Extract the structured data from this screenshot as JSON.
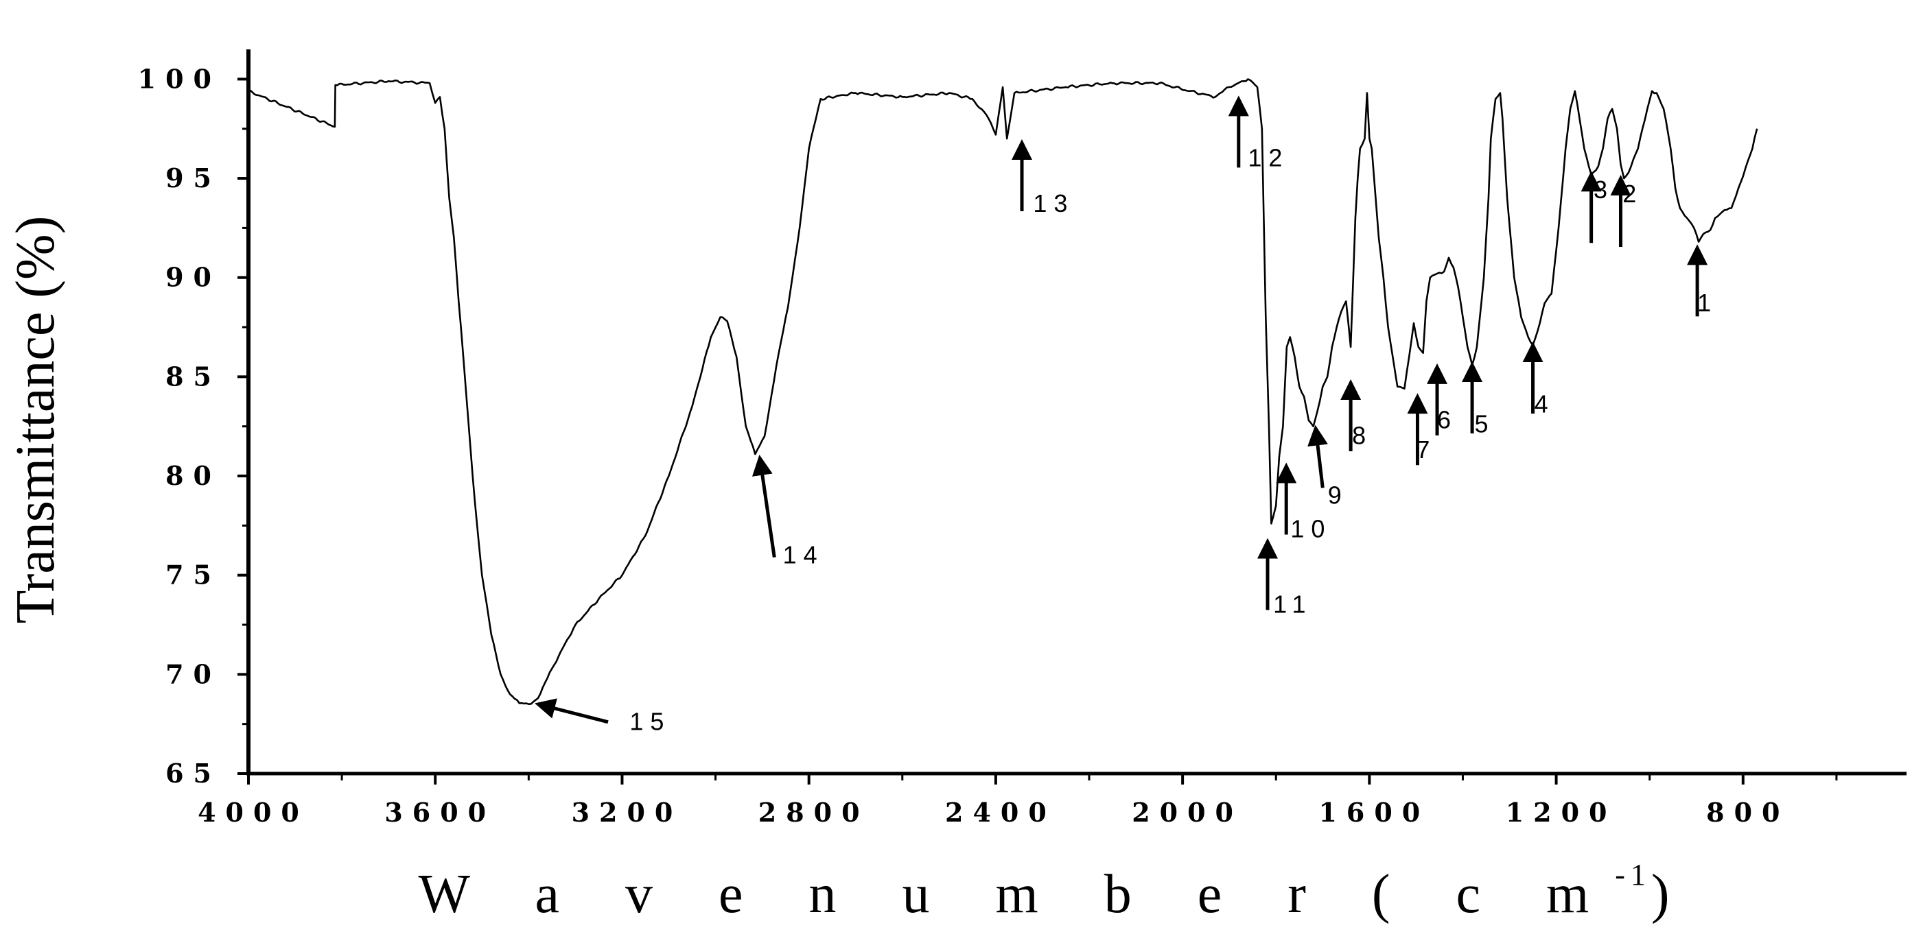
{
  "chart_data": {
    "type": "line",
    "title": "",
    "ylabel": "Transmittance (%)",
    "xlabel": "W a v e n u m b e r ( c m",
    "xlabel_superscript": "-1",
    "xlabel_close": ")",
    "xlim": [
      4000,
      450
    ],
    "x_reversed": true,
    "ylim": [
      65,
      101.5
    ],
    "grid": false,
    "x_ticks": [
      4000,
      3600,
      3200,
      2800,
      2400,
      2000,
      1600,
      1200,
      800
    ],
    "x_tick_labels": [
      "4000",
      "3600",
      "3200",
      "2800",
      "2400",
      "2000",
      "1600",
      "1200",
      "800"
    ],
    "y_ticks": [
      65,
      70,
      75,
      80,
      85,
      90,
      95,
      100
    ],
    "y_tick_labels": [
      "65",
      "70",
      "75",
      "80",
      "85",
      "90",
      "95",
      "100"
    ],
    "series": [
      {
        "color": "#000000",
        "points": [
          [
            4000,
            99.4
          ],
          [
            3815,
            97.6
          ],
          [
            3814,
            99.7
          ],
          [
            3700,
            99.9
          ],
          [
            3612,
            99.8
          ],
          [
            3600,
            98.8
          ],
          [
            3590,
            99.1
          ],
          [
            3580,
            97.5
          ],
          [
            3570,
            94.0
          ],
          [
            3560,
            92.0
          ],
          [
            3550,
            88.8
          ],
          [
            3540,
            86.0
          ],
          [
            3530,
            83.0
          ],
          [
            3520,
            80.0
          ],
          [
            3510,
            77.4
          ],
          [
            3500,
            75.0
          ],
          [
            3480,
            72.0
          ],
          [
            3460,
            70.0
          ],
          [
            3440,
            69.0
          ],
          [
            3420,
            68.55
          ],
          [
            3400,
            68.5
          ],
          [
            3380,
            68.8
          ],
          [
            3350,
            70.3
          ],
          [
            3300,
            72.5
          ],
          [
            3250,
            73.8
          ],
          [
            3200,
            75.0
          ],
          [
            3150,
            77.0
          ],
          [
            3100,
            80.0
          ],
          [
            3050,
            83.5
          ],
          [
            3010,
            87.0
          ],
          [
            2990,
            88.0
          ],
          [
            2975,
            87.8
          ],
          [
            2955,
            86.0
          ],
          [
            2935,
            82.5
          ],
          [
            2915,
            81.1
          ],
          [
            2895,
            82.0
          ],
          [
            2870,
            85.5
          ],
          [
            2845,
            88.5
          ],
          [
            2820,
            92.5
          ],
          [
            2800,
            96.5
          ],
          [
            2775,
            99.0
          ],
          [
            2700,
            99.3
          ],
          [
            2600,
            99.1
          ],
          [
            2500,
            99.3
          ],
          [
            2450,
            99.0
          ],
          [
            2420,
            98.2
          ],
          [
            2400,
            97.2
          ],
          [
            2385,
            99.6
          ],
          [
            2376,
            97.0
          ],
          [
            2360,
            99.3
          ],
          [
            2250,
            99.6
          ],
          [
            2150,
            99.8
          ],
          [
            2050,
            99.8
          ],
          [
            1985,
            99.4
          ],
          [
            1930,
            99.1
          ],
          [
            1900,
            99.6
          ],
          [
            1860,
            100.0
          ],
          [
            1840,
            99.6
          ],
          [
            1830,
            97.5
          ],
          [
            1822,
            88.0
          ],
          [
            1815,
            82.5
          ],
          [
            1810,
            77.6
          ],
          [
            1800,
            78.5
          ],
          [
            1793,
            81.0
          ],
          [
            1785,
            82.5
          ],
          [
            1777,
            86.5
          ],
          [
            1770,
            87.0
          ],
          [
            1760,
            86.0
          ],
          [
            1750,
            84.5
          ],
          [
            1740,
            84.0
          ],
          [
            1730,
            82.8
          ],
          [
            1720,
            82.5
          ],
          [
            1712,
            83.2
          ],
          [
            1700,
            84.5
          ],
          [
            1690,
            85.0
          ],
          [
            1680,
            86.5
          ],
          [
            1670,
            87.5
          ],
          [
            1660,
            88.3
          ],
          [
            1650,
            88.8
          ],
          [
            1640,
            86.5
          ],
          [
            1630,
            93.0
          ],
          [
            1625,
            95.0
          ],
          [
            1620,
            96.5
          ],
          [
            1610,
            97.0
          ],
          [
            1605,
            99.3
          ],
          [
            1600,
            97.0
          ],
          [
            1595,
            96.5
          ],
          [
            1590,
            95.0
          ],
          [
            1580,
            92.0
          ],
          [
            1570,
            90.0
          ],
          [
            1560,
            87.5
          ],
          [
            1550,
            86.0
          ],
          [
            1540,
            84.5
          ],
          [
            1525,
            84.4
          ],
          [
            1515,
            86.0
          ],
          [
            1505,
            87.7
          ],
          [
            1495,
            86.5
          ],
          [
            1485,
            86.2
          ],
          [
            1478,
            88.8
          ],
          [
            1470,
            90.0
          ],
          [
            1455,
            90.2
          ],
          [
            1440,
            90.3
          ],
          [
            1430,
            91.0
          ],
          [
            1420,
            90.5
          ],
          [
            1410,
            89.5
          ],
          [
            1400,
            88.0
          ],
          [
            1390,
            86.5
          ],
          [
            1380,
            85.6
          ],
          [
            1370,
            86.5
          ],
          [
            1355,
            90.0
          ],
          [
            1345,
            94.0
          ],
          [
            1340,
            97.0
          ],
          [
            1330,
            99.0
          ],
          [
            1320,
            99.3
          ],
          [
            1315,
            98.0
          ],
          [
            1305,
            94.0
          ],
          [
            1290,
            90.0
          ],
          [
            1275,
            88.0
          ],
          [
            1260,
            87.0
          ],
          [
            1250,
            86.6
          ],
          [
            1240,
            87.3
          ],
          [
            1225,
            88.7
          ],
          [
            1210,
            89.2
          ],
          [
            1195,
            92.5
          ],
          [
            1180,
            96.5
          ],
          [
            1170,
            98.5
          ],
          [
            1160,
            99.4
          ],
          [
            1150,
            98.0
          ],
          [
            1140,
            96.5
          ],
          [
            1125,
            95.2
          ],
          [
            1110,
            95.6
          ],
          [
            1100,
            96.5
          ],
          [
            1090,
            98.0
          ],
          [
            1080,
            98.5
          ],
          [
            1070,
            97.5
          ],
          [
            1062,
            95.7
          ],
          [
            1055,
            95.0
          ],
          [
            1045,
            95.3
          ],
          [
            1025,
            96.5
          ],
          [
            1005,
            98.5
          ],
          [
            995,
            99.4
          ],
          [
            985,
            99.3
          ],
          [
            970,
            98.5
          ],
          [
            955,
            96.5
          ],
          [
            945,
            94.5
          ],
          [
            935,
            93.5
          ],
          [
            920,
            93.0
          ],
          [
            905,
            92.5
          ],
          [
            895,
            91.8
          ],
          [
            885,
            92.2
          ],
          [
            870,
            92.4
          ],
          [
            860,
            93.0
          ],
          [
            845,
            93.3
          ],
          [
            825,
            93.5
          ],
          [
            810,
            94.5
          ],
          [
            795,
            95.5
          ],
          [
            780,
            96.5
          ],
          [
            770,
            97.5
          ]
        ]
      }
    ],
    "annotations": [
      {
        "label": "1",
        "x": 898,
        "y": 91.5,
        "dir": "up",
        "text_x": 898,
        "text_y": 88.3
      },
      {
        "label": "2",
        "x": 1062,
        "y": 95.0,
        "dir": "up",
        "text_x": 1058,
        "text_y": 93.8
      },
      {
        "label": "3",
        "x": 1125,
        "y": 95.2,
        "dir": "up",
        "text_x": 1120,
        "text_y": 94.0
      },
      {
        "label": "4",
        "x": 1250,
        "y": 86.6,
        "dir": "up",
        "text_x": 1247,
        "text_y": 83.2
      },
      {
        "label": "5",
        "x": 1380,
        "y": 85.6,
        "dir": "up",
        "text_x": 1375,
        "text_y": 82.2
      },
      {
        "label": "6",
        "x": 1455,
        "y": 85.5,
        "dir": "up",
        "text_x": 1455,
        "text_y": 82.4
      },
      {
        "label": "7",
        "x": 1497,
        "y": 84.0,
        "dir": "up",
        "text_x": 1500,
        "text_y": 80.9
      },
      {
        "label": "8",
        "x": 1640,
        "y": 84.7,
        "dir": "up",
        "text_x": 1637,
        "text_y": 81.6
      },
      {
        "label": "9",
        "x": 1715,
        "y": 82.4,
        "dir": "diag",
        "tail_x": 1700,
        "tail_y": 79.4,
        "text_x": 1689,
        "text_y": 78.6
      },
      {
        "label": "10",
        "x": 1778,
        "y": 80.5,
        "dir": "up",
        "text_x": 1769,
        "text_y": 76.9
      },
      {
        "label": "11",
        "x": 1818,
        "y": 76.7,
        "dir": "up",
        "text_x": 1806,
        "text_y": 73.1
      },
      {
        "label": "12",
        "x": 1880,
        "y": 99.0,
        "dir": "up",
        "text_x": 1860,
        "text_y": 95.6
      },
      {
        "label": "13",
        "x": 2344,
        "y": 96.8,
        "dir": "up",
        "text_x": 2320,
        "text_y": 93.3
      },
      {
        "label": "14",
        "x": 2905,
        "y": 80.9,
        "dir": "diag",
        "tail_x": 2874,
        "tail_y": 75.9,
        "text_x": 2856,
        "text_y": 75.6
      },
      {
        "label": "15",
        "x": 3380,
        "y": 68.5,
        "dir": "diag",
        "tail_x": 3230,
        "tail_y": 67.6,
        "text_x": 3184,
        "text_y": 67.2
      }
    ]
  }
}
